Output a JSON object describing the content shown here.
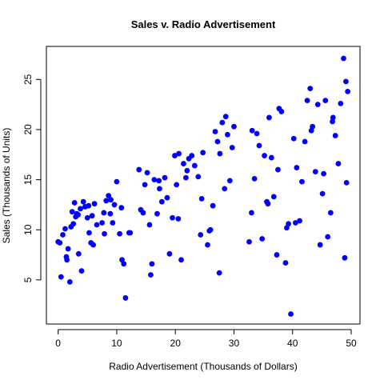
{
  "chart_data": {
    "type": "scatter",
    "title": "Sales v. Radio Advertisement",
    "xlabel": "Radio Advertisement (Thousands of Dollars)",
    "ylabel": "Sales (Thousands of Units)",
    "xlim": [
      -2,
      51.5
    ],
    "ylim": [
      0.6,
      28.3
    ],
    "xticks": [
      0,
      10,
      20,
      30,
      40,
      50
    ],
    "yticks": [
      5,
      10,
      15,
      20,
      25
    ],
    "grid": false,
    "point_color": "#0000ff",
    "series": [
      {
        "x": [
          0.0,
          0.3,
          0.5,
          0.8,
          1.2,
          1.5,
          1.7,
          2.0,
          2.2,
          2.4,
          2.6,
          2.8,
          3.0,
          3.2,
          3.5,
          3.8,
          4.0,
          4.3,
          4.6,
          5.0,
          5.3,
          5.6,
          5.8,
          6.2,
          6.6,
          1.4,
          3.4,
          5.2,
          6.0,
          7.5,
          7.9,
          8.2,
          8.6,
          8.9,
          9.3,
          9.6,
          10.0,
          10.5,
          10.9,
          11.5,
          12.1,
          7.8,
          9.0,
          10.8,
          11.2,
          12.3,
          13.8,
          14.1,
          14.5,
          14.8,
          15.2,
          15.6,
          16.0,
          16.4,
          16.9,
          17.3,
          17.7,
          18.2,
          18.6,
          19.0,
          19.5,
          19.9,
          15.8,
          17.2,
          20.2,
          20.6,
          21.0,
          21.4,
          21.8,
          22.3,
          22.8,
          23.3,
          23.9,
          24.3,
          24.7,
          20.5,
          22.0,
          24.5,
          25.5,
          26.0,
          26.4,
          26.8,
          27.2,
          27.6,
          28.0,
          28.4,
          28.9,
          29.3,
          29.7,
          25.8,
          27.5,
          28.6,
          30.0,
          32.6,
          33.0,
          33.5,
          33.9,
          34.3,
          34.8,
          35.2,
          35.6,
          36.0,
          36.4,
          36.8,
          37.3,
          37.7,
          38.1,
          33.1,
          35.8,
          37.5,
          38.8,
          39.3,
          39.7,
          40.2,
          40.7,
          41.2,
          41.6,
          42.1,
          42.5,
          43.0,
          43.4,
          43.9,
          39.0,
          40.5,
          43.2,
          44.3,
          44.7,
          45.1,
          45.6,
          46.0,
          46.5,
          46.9,
          47.3,
          47.8,
          48.2,
          48.7,
          49.1,
          49.4,
          45.3,
          46.8,
          48.9,
          49.2
        ],
        "y": [
          8.8,
          8.7,
          5.3,
          9.5,
          10.1,
          7.0,
          8.1,
          4.8,
          10.3,
          11.8,
          10.6,
          12.7,
          11.3,
          11.6,
          7.6,
          12.1,
          5.9,
          12.8,
          12.3,
          11.2,
          9.7,
          8.7,
          11.4,
          12.6,
          10.5,
          7.3,
          11.5,
          12.4,
          8.5,
          10.7,
          9.6,
          12.9,
          13.4,
          11.6,
          10.7,
          12.5,
          14.8,
          9.6,
          7.0,
          3.2,
          9.7,
          11.7,
          13.0,
          12.2,
          6.6,
          9.7,
          16.0,
          12.0,
          11.7,
          14.5,
          15.7,
          10.5,
          6.6,
          15.0,
          11.6,
          14.1,
          12.8,
          15.2,
          13.2,
          7.6,
          11.2,
          17.4,
          5.5,
          14.9,
          14.5,
          17.6,
          7.0,
          16.6,
          15.2,
          17.1,
          17.4,
          16.4,
          15.3,
          9.5,
          17.7,
          11.1,
          15.9,
          13.1,
          8.5,
          10.0,
          12.4,
          19.8,
          18.8,
          17.6,
          20.7,
          14.1,
          19.5,
          14.9,
          18.2,
          9.9,
          5.7,
          21.3,
          20.3,
          8.8,
          11.7,
          15.1,
          19.6,
          18.4,
          9.1,
          17.4,
          12.8,
          21.2,
          17.2,
          13.3,
          7.5,
          22.1,
          21.8,
          19.9,
          12.6,
          16.0,
          6.7,
          10.6,
          1.6,
          19.1,
          16.2,
          10.9,
          14.8,
          18.8,
          22.9,
          24.1,
          20.3,
          15.8,
          10.2,
          10.7,
          19.9,
          22.5,
          8.5,
          13.6,
          22.9,
          9.3,
          11.7,
          21.2,
          19.4,
          16.6,
          22.6,
          27.1,
          24.8,
          23.8,
          15.6,
          20.8,
          7.2,
          14.7
        ]
      }
    ]
  }
}
